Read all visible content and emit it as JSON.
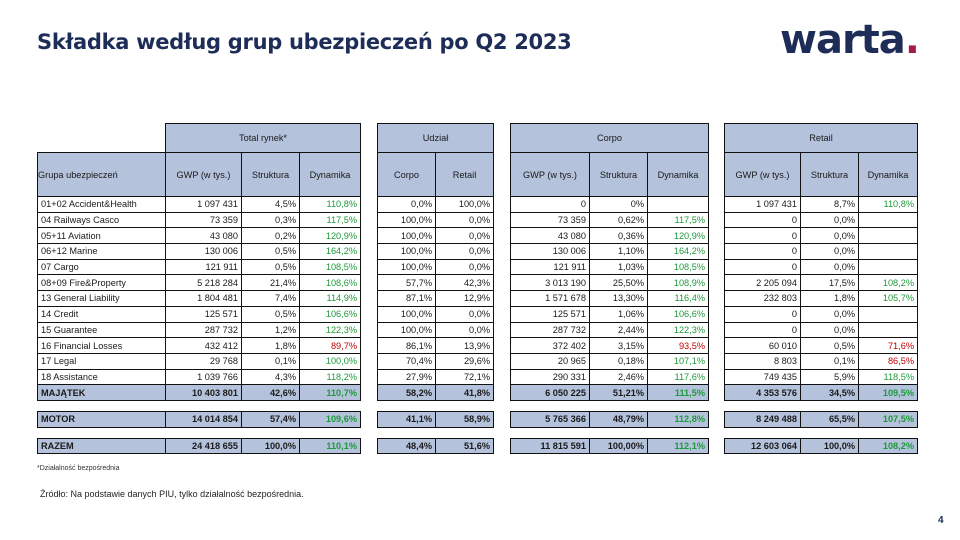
{
  "title": "Składka według grup ubezpieczeń po Q2 2023",
  "logo": {
    "text": "warta",
    "dot": "."
  },
  "header": {
    "groups": {
      "total": "Total rynek*",
      "udzial": "Udział",
      "corpo": "Corpo",
      "retail": "Retail"
    },
    "columns": {
      "grupa": "Grupa ubezpieczeń",
      "total": [
        "GWP (w tys.)",
        "Struktura",
        "Dynamika"
      ],
      "udzial": [
        "Corpo",
        "Retail"
      ],
      "corpo": [
        "GWP (w tys.)",
        "Struktura",
        "Dynamika"
      ],
      "retail": [
        "GWP (w tys.)",
        "Struktura",
        "Dynamika"
      ]
    }
  },
  "rows": [
    {
      "name": "01+02 Accident&Health",
      "t": [
        "1 097 431",
        "4,5%",
        "110,8%"
      ],
      "u": [
        "0,0%",
        "100,0%"
      ],
      "c": [
        "0",
        "0%",
        ""
      ],
      "r": [
        "1 097 431",
        "8,7%",
        "110,8%"
      ]
    },
    {
      "name": "04 Railways Casco",
      "t": [
        "73 359",
        "0,3%",
        "117,5%"
      ],
      "u": [
        "100,0%",
        "0,0%"
      ],
      "c": [
        "73 359",
        "0,62%",
        "117,5%"
      ],
      "r": [
        "0",
        "0,0%",
        ""
      ]
    },
    {
      "name": "05+11 Aviation",
      "t": [
        "43 080",
        "0,2%",
        "120,9%"
      ],
      "u": [
        "100,0%",
        "0,0%"
      ],
      "c": [
        "43 080",
        "0,36%",
        "120,9%"
      ],
      "r": [
        "0",
        "0,0%",
        ""
      ]
    },
    {
      "name": "06+12 Marine",
      "t": [
        "130 006",
        "0,5%",
        "164,2%"
      ],
      "u": [
        "100,0%",
        "0,0%"
      ],
      "c": [
        "130 006",
        "1,10%",
        "164,2%"
      ],
      "r": [
        "0",
        "0,0%",
        ""
      ]
    },
    {
      "name": "07 Cargo",
      "t": [
        "121 911",
        "0,5%",
        "108,5%"
      ],
      "u": [
        "100,0%",
        "0,0%"
      ],
      "c": [
        "121 911",
        "1,03%",
        "108,5%"
      ],
      "r": [
        "0",
        "0,0%",
        ""
      ]
    },
    {
      "name": "08+09 Fire&Property",
      "t": [
        "5 218 284",
        "21,4%",
        "108,6%"
      ],
      "u": [
        "57,7%",
        "42,3%"
      ],
      "c": [
        "3 013 190",
        "25,50%",
        "108,9%"
      ],
      "r": [
        "2 205 094",
        "17,5%",
        "108,2%"
      ]
    },
    {
      "name": "13 General Liability",
      "t": [
        "1 804 481",
        "7,4%",
        "114,9%"
      ],
      "u": [
        "87,1%",
        "12,9%"
      ],
      "c": [
        "1 571 678",
        "13,30%",
        "116,4%"
      ],
      "r": [
        "232 803",
        "1,8%",
        "105,7%"
      ]
    },
    {
      "name": "14 Credit",
      "t": [
        "125 571",
        "0,5%",
        "106,6%"
      ],
      "u": [
        "100,0%",
        "0,0%"
      ],
      "c": [
        "125 571",
        "1,06%",
        "106,6%"
      ],
      "r": [
        "0",
        "0,0%",
        ""
      ]
    },
    {
      "name": "15 Guarantee",
      "t": [
        "287 732",
        "1,2%",
        "122,3%"
      ],
      "u": [
        "100,0%",
        "0,0%"
      ],
      "c": [
        "287 732",
        "2,44%",
        "122,3%"
      ],
      "r": [
        "0",
        "0,0%",
        ""
      ]
    },
    {
      "name": "16 Financial Losses",
      "t": [
        "432 412",
        "1,8%",
        "89,7%"
      ],
      "u": [
        "86,1%",
        "13,9%"
      ],
      "c": [
        "372 402",
        "3,15%",
        "93,5%"
      ],
      "r": [
        "60 010",
        "0,5%",
        "71,6%"
      ]
    },
    {
      "name": "17 Legal",
      "t": [
        "29 768",
        "0,1%",
        "100,0%"
      ],
      "u": [
        "70,4%",
        "29,6%"
      ],
      "c": [
        "20 965",
        "0,18%",
        "107,1%"
      ],
      "r": [
        "8 803",
        "0,1%",
        "86,5%"
      ]
    },
    {
      "name": "18 Assistance",
      "t": [
        "1 039 766",
        "4,3%",
        "118,2%"
      ],
      "u": [
        "27,9%",
        "72,1%"
      ],
      "c": [
        "290 331",
        "2,46%",
        "117,6%"
      ],
      "r": [
        "749 435",
        "5,9%",
        "118,5%"
      ]
    }
  ],
  "summary": [
    {
      "name": "MAJĄTEK",
      "t": [
        "10 403 801",
        "42,6%",
        "110,7%"
      ],
      "u": [
        "58,2%",
        "41,8%"
      ],
      "c": [
        "6 050 225",
        "51,21%",
        "111,5%"
      ],
      "r": [
        "4 353 576",
        "34,5%",
        "109,5%"
      ]
    },
    {
      "name": "MOTOR",
      "t": [
        "14 014 854",
        "57,4%",
        "109,6%"
      ],
      "u": [
        "41,1%",
        "58,9%"
      ],
      "c": [
        "5 765 366",
        "48,79%",
        "112,8%"
      ],
      "r": [
        "8 249 488",
        "65,5%",
        "107,5%"
      ]
    },
    {
      "name": "RAZEM",
      "t": [
        "24 418 655",
        "100,0%",
        "110,1%"
      ],
      "u": [
        "48,4%",
        "51,6%"
      ],
      "c": [
        "11 815 591",
        "100,00%",
        "112,1%"
      ],
      "r": [
        "12 603 064",
        "100,0%",
        "108,2%"
      ]
    }
  ],
  "colors": {
    "positive": "#1e9a3a",
    "negative": "#c00000",
    "header_bg": "#b4c2db",
    "title": "#1d2d57",
    "logo_dot": "#a11c4d"
  },
  "footnote": "*Działalność bezpośrednia",
  "source": "Źródło: Na podstawie danych PIU, tylko działalność bezpośrednia.",
  "page_number": "4"
}
